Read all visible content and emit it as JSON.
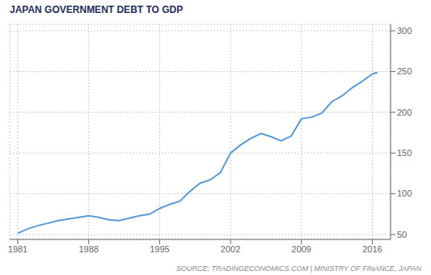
{
  "chart_data": {
    "type": "line",
    "title": "JAPAN GOVERNMENT DEBT TO GDP",
    "annotations": [
      "SOURCE: TRADINGECONOMICS.COM | MINISTRY OF FINANCE, JAPAN"
    ],
    "x": [
      1981,
      1982,
      1983,
      1984,
      1985,
      1986,
      1987,
      1988,
      1989,
      1990,
      1991,
      1992,
      1993,
      1994,
      1995,
      1996,
      1997,
      1998,
      1999,
      2000,
      2001,
      2002,
      2003,
      2004,
      2005,
      2006,
      2007,
      2008,
      2009,
      2010,
      2011,
      2012,
      2013,
      2014,
      2015,
      2016,
      2016.5
    ],
    "values": [
      51.5,
      57,
      61,
      64,
      67,
      69,
      71,
      73,
      71,
      68,
      67,
      70,
      73,
      75,
      82,
      87,
      91,
      103,
      113,
      117,
      126,
      150,
      160,
      168,
      174,
      170,
      165,
      171,
      192,
      194,
      199,
      213,
      220,
      230,
      238,
      247,
      249
    ],
    "color": "#5b9bd5",
    "xlim": [
      1980.2,
      2017.8
    ],
    "xticks": [
      1981,
      1988,
      1995,
      2002,
      2009,
      2016
    ],
    "ylim": [
      44,
      308
    ],
    "yticks": [
      50,
      100,
      150,
      200,
      250,
      300
    ],
    "grid": true
  }
}
